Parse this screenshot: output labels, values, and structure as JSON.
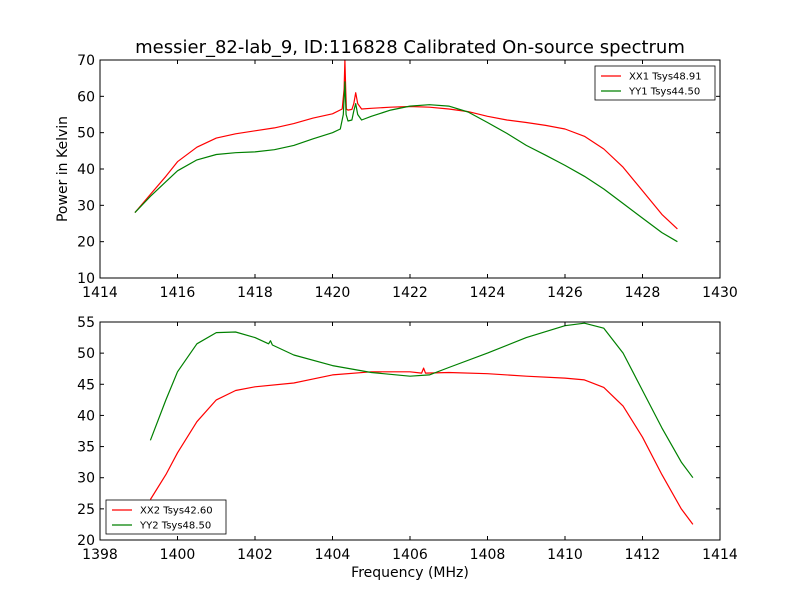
{
  "chart_data": [
    {
      "type": "line",
      "title": "messier_82-lab_9, ID:116828 Calibrated On-source spectrum",
      "xlabel": "",
      "ylabel": "Power in Kelvin",
      "xlim": [
        1414,
        1430
      ],
      "ylim": [
        10,
        70
      ],
      "xticks": [
        "1414",
        "1416",
        "1418",
        "1420",
        "1422",
        "1424",
        "1426",
        "1428",
        "1430"
      ],
      "yticks": [
        "10",
        "20",
        "30",
        "40",
        "50",
        "60",
        "70"
      ],
      "legend_position": "top-right",
      "grid": false,
      "series": [
        {
          "name": "XX1 Tsys48.91",
          "color": "#ff0000",
          "x": [
            1414.9,
            1415.3,
            1415.7,
            1416.0,
            1416.5,
            1417.0,
            1417.5,
            1418.0,
            1418.5,
            1419.0,
            1419.5,
            1420.0,
            1420.25,
            1420.3,
            1420.32,
            1420.34,
            1420.36,
            1420.4,
            1420.5,
            1420.55,
            1420.6,
            1420.65,
            1420.75,
            1421.0,
            1421.5,
            1422.0,
            1422.5,
            1423.0,
            1423.5,
            1424.0,
            1424.5,
            1425.0,
            1425.5,
            1426.0,
            1426.5,
            1427.0,
            1427.5,
            1428.0,
            1428.5,
            1428.9
          ],
          "y": [
            28,
            33,
            38,
            42,
            46,
            48.5,
            49.7,
            50.5,
            51.3,
            52.5,
            54.0,
            55.2,
            56.5,
            62,
            70,
            62,
            56.5,
            56.2,
            56.4,
            58,
            61,
            58,
            56.5,
            56.7,
            57.0,
            57.2,
            57.0,
            56.5,
            55.8,
            54.5,
            53.5,
            52.8,
            52.0,
            51.0,
            49.0,
            45.5,
            40.5,
            34.0,
            27.5,
            23.5
          ]
        },
        {
          "name": "YY1 Tsys44.50",
          "color": "#008000",
          "x": [
            1414.9,
            1415.3,
            1415.7,
            1416.0,
            1416.5,
            1417.0,
            1417.5,
            1418.0,
            1418.5,
            1419.0,
            1419.5,
            1420.0,
            1420.2,
            1420.28,
            1420.32,
            1420.35,
            1420.4,
            1420.5,
            1420.55,
            1420.6,
            1420.65,
            1420.75,
            1421.0,
            1421.5,
            1422.0,
            1422.5,
            1423.0,
            1423.5,
            1424.0,
            1424.5,
            1425.0,
            1425.5,
            1426.0,
            1426.5,
            1427.0,
            1427.5,
            1428.0,
            1428.5,
            1428.9
          ],
          "y": [
            28,
            32.5,
            36.5,
            39.5,
            42.5,
            44.0,
            44.5,
            44.7,
            45.3,
            46.5,
            48.3,
            50.0,
            51.0,
            55.0,
            64.0,
            55.0,
            53.2,
            53.5,
            56.0,
            58.0,
            55.0,
            53.5,
            54.5,
            56.2,
            57.3,
            57.7,
            57.3,
            55.7,
            52.8,
            49.8,
            46.5,
            43.8,
            41.0,
            38.0,
            34.5,
            30.5,
            26.5,
            22.5,
            20.0
          ]
        }
      ]
    },
    {
      "type": "line",
      "title": "",
      "xlabel": "Frequency (MHz)",
      "ylabel": "",
      "xlim": [
        1398,
        1414
      ],
      "ylim": [
        20,
        55
      ],
      "xticks": [
        "1398",
        "1400",
        "1402",
        "1404",
        "1406",
        "1408",
        "1410",
        "1412",
        "1414"
      ],
      "yticks": [
        "20",
        "25",
        "30",
        "35",
        "40",
        "45",
        "50",
        "55"
      ],
      "legend_position": "bottom-left",
      "grid": false,
      "series": [
        {
          "name": "XX2 Tsys42.60",
          "color": "#ff0000",
          "x": [
            1399.3,
            1399.7,
            1400.0,
            1400.5,
            1401.0,
            1401.5,
            1402.0,
            1403.0,
            1404.0,
            1405.0,
            1406.0,
            1406.3,
            1406.35,
            1406.4,
            1407.0,
            1408.0,
            1409.0,
            1410.0,
            1410.5,
            1411.0,
            1411.5,
            1412.0,
            1412.5,
            1413.0,
            1413.3
          ],
          "y": [
            26.5,
            30.5,
            34.0,
            39.0,
            42.5,
            44.0,
            44.6,
            45.2,
            46.5,
            47.0,
            47.0,
            46.8,
            47.6,
            46.8,
            46.9,
            46.7,
            46.3,
            46.0,
            45.7,
            44.5,
            41.5,
            36.5,
            30.5,
            25.0,
            22.5
          ]
        },
        {
          "name": "YY2 Tsys48.50",
          "color": "#008000",
          "x": [
            1399.3,
            1399.7,
            1400.0,
            1400.5,
            1401.0,
            1401.5,
            1402.0,
            1402.35,
            1402.4,
            1402.45,
            1403.0,
            1404.0,
            1405.0,
            1406.0,
            1406.5,
            1407.0,
            1408.0,
            1409.0,
            1410.0,
            1410.5,
            1411.0,
            1411.5,
            1412.0,
            1412.5,
            1413.0,
            1413.3
          ],
          "y": [
            36.0,
            42.5,
            47.0,
            51.5,
            53.3,
            53.4,
            52.5,
            51.5,
            52.0,
            51.3,
            49.7,
            48.0,
            46.9,
            46.3,
            46.5,
            47.7,
            50.0,
            52.5,
            54.4,
            54.8,
            54.0,
            50.0,
            44.0,
            38.0,
            32.5,
            30.0
          ]
        }
      ]
    }
  ]
}
